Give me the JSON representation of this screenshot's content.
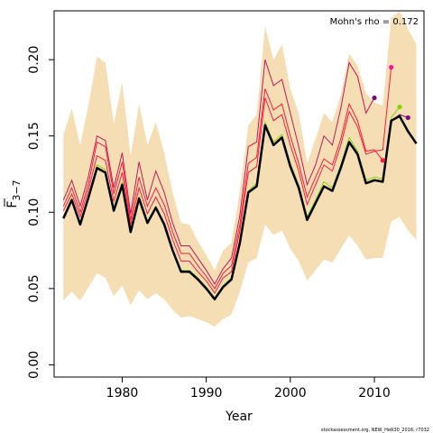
{
  "chart_data": {
    "type": "line",
    "title": "",
    "xlabel": "Year",
    "ylabel_main": "F",
    "ylabel_sub": "3−7",
    "annotation": "Mohn's rho = 0.172",
    "credit": "stockassessment.org, NEW_HeR30_2016, r7032",
    "xlim": [
      1971.9,
      2015.9
    ],
    "ylim": [
      -0.008,
      0.232
    ],
    "xticks": [
      1980,
      1990,
      2000,
      2010
    ],
    "yticks": [
      0.0,
      0.05,
      0.1,
      0.15,
      0.2
    ],
    "ytick_labels": [
      "0.00",
      "0.05",
      "0.10",
      "0.15",
      "0.20"
    ],
    "grid": false,
    "legend": "none",
    "colors": {
      "band": "#f5deb3",
      "main_line": "#000000",
      "peel_dark_red": "#c2185b",
      "peel_red": "#ff1a3c",
      "peel_yellow_green": "#7fd600",
      "peel_purple": "#800080",
      "peel_pink": "#ff1493",
      "peel_orange": "#e0a000"
    },
    "years": [
      1973,
      1974,
      1975,
      1976,
      1977,
      1978,
      1979,
      1980,
      1981,
      1982,
      1983,
      1984,
      1985,
      1986,
      1987,
      1988,
      1989,
      1990,
      1991,
      1992,
      1993,
      1994,
      1995,
      1996,
      1997,
      1998,
      1999,
      2000,
      2001,
      2002,
      2003,
      2004,
      2005,
      2006,
      2007,
      2008,
      2009,
      2010,
      2011,
      2012,
      2013,
      2014,
      2015
    ],
    "band": {
      "upper": [
        0.151,
        0.168,
        0.144,
        0.171,
        0.202,
        0.198,
        0.158,
        0.185,
        0.137,
        0.171,
        0.144,
        0.159,
        0.139,
        0.113,
        0.093,
        0.092,
        0.081,
        0.072,
        0.062,
        0.075,
        0.08,
        0.114,
        0.157,
        0.164,
        0.222,
        0.2,
        0.21,
        0.181,
        0.165,
        0.132,
        0.148,
        0.165,
        0.159,
        0.177,
        0.204,
        0.196,
        0.178,
        0.172,
        0.17,
        0.227,
        0.232,
        0.22,
        0.21
      ],
      "lower": [
        0.042,
        0.048,
        0.042,
        0.051,
        0.06,
        0.057,
        0.045,
        0.052,
        0.039,
        0.049,
        0.043,
        0.047,
        0.043,
        0.036,
        0.031,
        0.032,
        0.03,
        0.028,
        0.025,
        0.03,
        0.033,
        0.048,
        0.067,
        0.07,
        0.092,
        0.085,
        0.088,
        0.076,
        0.068,
        0.055,
        0.062,
        0.069,
        0.067,
        0.076,
        0.085,
        0.078,
        0.069,
        0.07,
        0.07,
        0.094,
        0.097,
        0.088,
        0.082
      ]
    },
    "main": {
      "name": "",
      "values": [
        0.096,
        0.108,
        0.092,
        0.11,
        0.129,
        0.126,
        0.101,
        0.118,
        0.087,
        0.109,
        0.093,
        0.103,
        0.092,
        0.075,
        0.061,
        0.061,
        0.056,
        0.05,
        0.043,
        0.051,
        0.056,
        0.08,
        0.113,
        0.117,
        0.157,
        0.144,
        0.149,
        0.13,
        0.116,
        0.095,
        0.106,
        0.117,
        0.114,
        0.129,
        0.146,
        0.138,
        0.119,
        0.121,
        0.12,
        0.16,
        0.163,
        0.153,
        0.145
      ]
    },
    "peels": [
      {
        "color_key": "peel_dark_red",
        "end_year": 2010,
        "end_value": 0.175,
        "values": [
          0.108,
          0.121,
          0.104,
          0.124,
          0.15,
          0.147,
          0.116,
          0.139,
          0.099,
          0.133,
          0.108,
          0.127,
          0.113,
          0.093,
          0.078,
          0.078,
          0.07,
          0.062,
          0.053,
          0.063,
          0.07,
          0.098,
          0.143,
          0.146,
          0.2,
          0.183,
          0.187,
          0.165,
          0.143,
          0.118,
          0.131,
          0.15,
          0.144,
          0.168,
          0.198,
          0.189,
          0.165,
          0.175
        ]
      },
      {
        "color_key": "peel_red",
        "end_year": 2011,
        "end_value": 0.134,
        "values": [
          0.104,
          0.116,
          0.1,
          0.119,
          0.146,
          0.143,
          0.112,
          0.133,
          0.095,
          0.123,
          0.104,
          0.116,
          0.105,
          0.087,
          0.073,
          0.073,
          0.065,
          0.058,
          0.05,
          0.06,
          0.065,
          0.092,
          0.132,
          0.136,
          0.181,
          0.167,
          0.171,
          0.15,
          0.132,
          0.11,
          0.123,
          0.135,
          0.131,
          0.148,
          0.171,
          0.16,
          0.14,
          0.141,
          0.134
        ]
      },
      {
        "color_key": "peel_red",
        "end_year": 2012,
        "end_value": 0.195,
        "values": [
          0.101,
          0.112,
          0.097,
          0.115,
          0.137,
          0.134,
          0.107,
          0.126,
          0.092,
          0.116,
          0.099,
          0.11,
          0.099,
          0.082,
          0.068,
          0.068,
          0.061,
          0.055,
          0.047,
          0.057,
          0.061,
          0.088,
          0.126,
          0.13,
          0.175,
          0.16,
          0.164,
          0.144,
          0.127,
          0.105,
          0.118,
          0.131,
          0.127,
          0.144,
          0.166,
          0.156,
          0.138,
          0.14,
          0.141,
          0.195
        ]
      },
      {
        "color_key": "peel_yellow_green",
        "end_year": 2013,
        "end_value": 0.169,
        "values": [
          0.097,
          0.109,
          0.093,
          0.111,
          0.131,
          0.128,
          0.103,
          0.12,
          0.088,
          0.11,
          0.094,
          0.104,
          0.093,
          0.076,
          0.062,
          0.062,
          0.057,
          0.051,
          0.044,
          0.052,
          0.057,
          0.081,
          0.114,
          0.119,
          0.159,
          0.146,
          0.151,
          0.132,
          0.118,
          0.097,
          0.108,
          0.12,
          0.116,
          0.131,
          0.149,
          0.14,
          0.121,
          0.123,
          0.122,
          0.162,
          0.169
        ]
      },
      {
        "color_key": "peel_purple",
        "end_year": 2014,
        "end_value": 0.162,
        "values": [
          0.096,
          0.108,
          0.092,
          0.11,
          0.129,
          0.126,
          0.101,
          0.118,
          0.087,
          0.109,
          0.093,
          0.103,
          0.092,
          0.075,
          0.061,
          0.061,
          0.056,
          0.05,
          0.043,
          0.051,
          0.056,
          0.08,
          0.113,
          0.117,
          0.157,
          0.144,
          0.149,
          0.13,
          0.116,
          0.095,
          0.106,
          0.117,
          0.114,
          0.129,
          0.146,
          0.138,
          0.119,
          0.121,
          0.12,
          0.16,
          0.164,
          0.162
        ]
      }
    ],
    "end_markers": [
      {
        "year": 2010,
        "value": 0.175,
        "color_key": "peel_purple"
      },
      {
        "year": 2011,
        "value": 0.134,
        "color_key": "peel_red"
      },
      {
        "year": 2012,
        "value": 0.195,
        "color_key": "peel_pink"
      },
      {
        "year": 2013,
        "value": 0.169,
        "color_key": "peel_yellow_green"
      },
      {
        "year": 2014,
        "value": 0.162,
        "color_key": "peel_purple"
      }
    ]
  }
}
